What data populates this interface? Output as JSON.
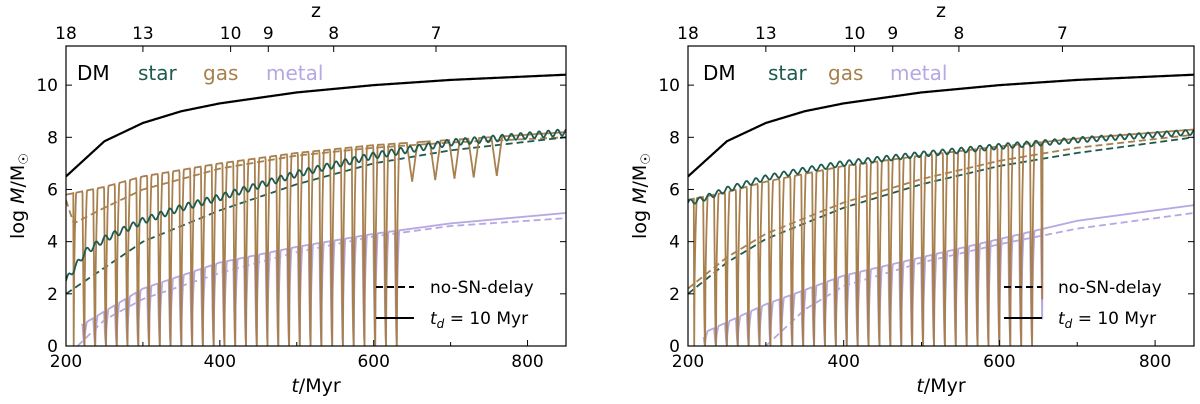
{
  "colors": {
    "dm": "#000000",
    "star": "#1f5a4f",
    "gas": "#a8804e",
    "metal": "#b7a7e3"
  },
  "legend": {
    "dashed_label": "no-SN-delay",
    "solid_label": "t_d = 10 Myr",
    "solid_label_parts": [
      "t",
      "d",
      " = 10 Myr"
    ]
  },
  "series_labels": [
    "DM",
    "star",
    "gas",
    "metal"
  ],
  "axis_text": {
    "xlabel": "t/Myr",
    "xlabel_italic": "t",
    "xlabel_rest": "/Myr",
    "ylabel": "log M/M_sun",
    "toplabel": "z"
  },
  "chart_data": [
    {
      "type": "line",
      "panel": "left",
      "xlabel": "t/Myr",
      "ylabel": "log M/M☉",
      "top_xlabel": "z",
      "xlim": [
        200,
        850
      ],
      "ylim": [
        0,
        11.5
      ],
      "xticks": [
        200,
        400,
        600,
        800
      ],
      "yticks": [
        0,
        2,
        4,
        6,
        8,
        10
      ],
      "top_axis": {
        "labels": [
          "18",
          "13",
          "10",
          "9",
          "8",
          "7"
        ],
        "t_positions": [
          200,
          300,
          414,
          463,
          548,
          681
        ]
      },
      "series": [
        {
          "name": "DM",
          "style": "solid",
          "x": [
            200,
            250,
            300,
            350,
            400,
            500,
            600,
            700,
            850
          ],
          "y": [
            6.5,
            7.85,
            8.55,
            9.0,
            9.3,
            9.72,
            10.0,
            10.2,
            10.4
          ]
        },
        {
          "name": "star",
          "style": "solid",
          "x": [
            200,
            225,
            250,
            300,
            350,
            400,
            500,
            600,
            700,
            850
          ],
          "y": [
            2.5,
            3.6,
            4.1,
            4.8,
            5.3,
            5.7,
            6.6,
            7.3,
            7.8,
            8.2
          ],
          "oscillation": {
            "period_myr": 12,
            "amplitude": 0.12
          }
        },
        {
          "name": "star",
          "style": "dashed",
          "x": [
            200,
            250,
            300,
            400,
            500,
            600,
            700,
            850
          ],
          "y": [
            2.0,
            3.0,
            4.0,
            5.2,
            6.2,
            7.0,
            7.5,
            8.0
          ]
        },
        {
          "name": "gas",
          "style": "solid",
          "x": [
            200,
            250,
            300,
            400,
            500,
            600,
            700,
            850
          ],
          "y": [
            5.8,
            6.1,
            6.5,
            7.0,
            7.4,
            7.7,
            7.9,
            8.2
          ],
          "cycles": {
            "start": 210,
            "end": 635,
            "period_myr": 14,
            "minimum": 0
          },
          "late_dips": [
            650,
            680,
            705,
            730,
            760
          ]
        },
        {
          "name": "gas",
          "style": "dashed",
          "x": [
            200,
            210,
            250,
            300,
            400,
            500,
            600,
            700,
            850
          ],
          "y": [
            5.6,
            4.7,
            5.3,
            6.0,
            6.8,
            7.3,
            7.6,
            7.8,
            8.0
          ]
        },
        {
          "name": "metal",
          "style": "solid",
          "x": [
            220,
            300,
            400,
            500,
            600,
            700,
            850
          ],
          "y": [
            0.8,
            2.2,
            3.2,
            3.8,
            4.3,
            4.7,
            5.1
          ],
          "cycles": {
            "start": 210,
            "end": 635,
            "period_myr": 14,
            "minimum": 0
          }
        },
        {
          "name": "metal",
          "style": "dashed",
          "x": [
            215,
            250,
            300,
            400,
            500,
            600,
            700,
            850
          ],
          "y": [
            0.0,
            1.0,
            1.8,
            2.8,
            3.6,
            4.2,
            4.6,
            4.9
          ]
        }
      ],
      "legend": [
        {
          "label": "no-SN-delay",
          "style": "dashed"
        },
        {
          "label": "t_d = 10 Myr",
          "style": "solid"
        }
      ],
      "legend_position": "lower-right"
    },
    {
      "type": "line",
      "panel": "right",
      "xlabel": "t/Myr",
      "ylabel": "log M/M☉",
      "top_xlabel": "z",
      "xlim": [
        200,
        850
      ],
      "ylim": [
        0,
        11.5
      ],
      "xticks": [
        200,
        400,
        600,
        800
      ],
      "yticks": [
        0,
        2,
        4,
        6,
        8,
        10
      ],
      "top_axis": {
        "labels": [
          "18",
          "13",
          "10",
          "9",
          "8",
          "7"
        ],
        "t_positions": [
          200,
          300,
          414,
          463,
          548,
          681
        ]
      },
      "series": [
        {
          "name": "DM",
          "style": "solid",
          "x": [
            200,
            250,
            300,
            350,
            400,
            500,
            600,
            700,
            850
          ],
          "y": [
            6.5,
            7.85,
            8.55,
            9.0,
            9.3,
            9.72,
            10.0,
            10.2,
            10.4
          ]
        },
        {
          "name": "star",
          "style": "solid",
          "x": [
            200,
            215,
            250,
            300,
            350,
            400,
            500,
            600,
            700,
            850
          ],
          "y": [
            5.5,
            5.6,
            6.0,
            6.45,
            6.75,
            7.0,
            7.35,
            7.65,
            7.9,
            8.2
          ],
          "oscillation": {
            "period_myr": 12,
            "amplitude": 0.1
          }
        },
        {
          "name": "star",
          "style": "dashed",
          "x": [
            200,
            250,
            300,
            400,
            500,
            600,
            700,
            850
          ],
          "y": [
            2.0,
            3.2,
            4.1,
            5.3,
            6.2,
            6.9,
            7.4,
            8.0
          ]
        },
        {
          "name": "gas",
          "style": "solid",
          "x": [
            200,
            250,
            300,
            400,
            500,
            600,
            700,
            850
          ],
          "y": [
            5.6,
            5.9,
            6.3,
            6.9,
            7.3,
            7.65,
            7.95,
            8.3
          ],
          "cycles": {
            "start": 208,
            "end": 655,
            "period_myr": 14,
            "minimum": 0
          }
        },
        {
          "name": "gas",
          "style": "dashed",
          "x": [
            200,
            250,
            300,
            400,
            500,
            600,
            700,
            850
          ],
          "y": [
            2.2,
            3.4,
            4.3,
            5.5,
            6.4,
            7.1,
            7.6,
            8.1
          ]
        },
        {
          "name": "metal",
          "style": "solid",
          "x": [
            220,
            300,
            400,
            500,
            600,
            700,
            850
          ],
          "y": [
            0.5,
            1.6,
            2.7,
            3.4,
            4.1,
            4.8,
            5.4
          ],
          "cycles": {
            "start": 208,
            "end": 655,
            "period_myr": 14,
            "minimum": 0
          }
        },
        {
          "name": "metal",
          "style": "dashed",
          "x": [
            300,
            350,
            400,
            500,
            600,
            700,
            850
          ],
          "y": [
            0.0,
            1.4,
            2.3,
            3.2,
            3.9,
            4.5,
            5.1
          ]
        }
      ],
      "legend": [
        {
          "label": "no-SN-delay",
          "style": "dashed"
        },
        {
          "label": "t_d = 10 Myr",
          "style": "solid"
        }
      ],
      "legend_position": "lower-right"
    }
  ]
}
